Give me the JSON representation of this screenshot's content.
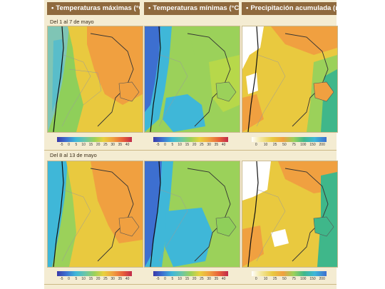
{
  "headers": [
    {
      "bullet": "•",
      "title": "Temperaturas máximas (°C)"
    },
    {
      "bullet": "•",
      "title": "Temperaturas mínimas (°C)"
    },
    {
      "bullet": "•",
      "title": "Precipitación acumulada (mm)"
    }
  ],
  "periods": [
    {
      "label": "Del 1 al 7 de mayo"
    },
    {
      "label": "Del 8 al 13 de mayo"
    }
  ],
  "colorbars": {
    "temp_ticks": [
      "-5",
      "0",
      "5",
      "10",
      "15",
      "20",
      "25",
      "30",
      "35",
      "40"
    ],
    "precip_ticks": [
      "0",
      "10",
      "25",
      "50",
      "75",
      "100",
      "150",
      "200"
    ]
  },
  "colors": {
    "header_bg": "#8f6a3e",
    "panel_bg": "#f4ecd2",
    "orange": "#f0a040",
    "yellow": "#e9c93f",
    "green": "#8fcf5a",
    "cyan": "#3fb7d8",
    "blue": "#3d6fd0"
  }
}
